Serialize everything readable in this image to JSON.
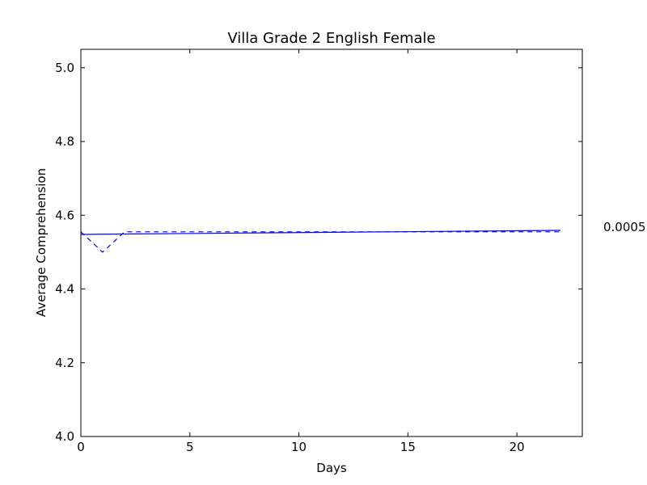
{
  "chart_data": {
    "type": "line",
    "title": "Villa Grade 2 English Female",
    "xlabel": "Days",
    "ylabel": "Average Comprehension",
    "xlim": [
      0,
      23
    ],
    "ylim": [
      4.0,
      5.05
    ],
    "xticks": [
      0,
      5,
      10,
      15,
      20
    ],
    "yticks": [
      4.0,
      4.2,
      4.4,
      4.6,
      4.8,
      5.0
    ],
    "xtick_labels": [
      "0",
      "5",
      "10",
      "15",
      "20"
    ],
    "ytick_labels": [
      "4.0",
      "4.2",
      "4.4",
      "4.6",
      "4.8",
      "5.0"
    ],
    "grid": false,
    "annotation": "0.0005",
    "series": [
      {
        "style": "dashed",
        "color": "#0000ff",
        "x": [
          0,
          1,
          2,
          3,
          4,
          5,
          6,
          7,
          8,
          9,
          10,
          11,
          12,
          13,
          14,
          15,
          16,
          17,
          18,
          19,
          20,
          21,
          22
        ],
        "y": [
          4.555,
          4.5,
          4.555,
          4.555,
          4.555,
          4.555,
          4.555,
          4.555,
          4.555,
          4.555,
          4.555,
          4.555,
          4.555,
          4.555,
          4.555,
          4.555,
          4.555,
          4.555,
          4.555,
          4.555,
          4.555,
          4.555,
          4.555
        ]
      },
      {
        "style": "solid",
        "color": "#0000ff",
        "x": [
          0,
          22
        ],
        "y": [
          4.548,
          4.559
        ]
      }
    ]
  }
}
